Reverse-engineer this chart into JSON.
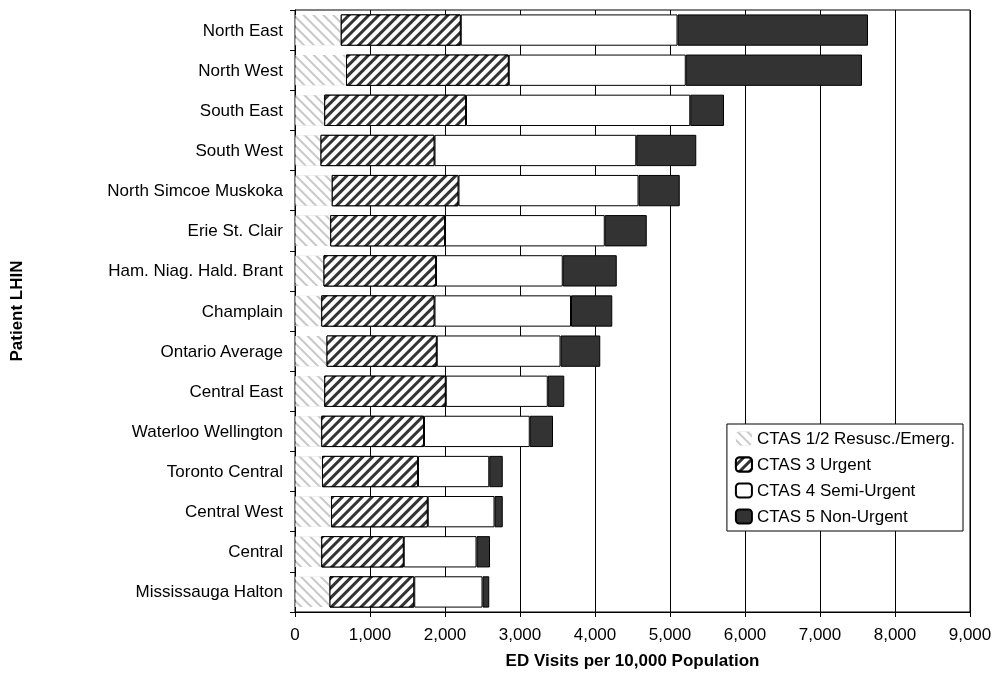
{
  "chart_data": {
    "type": "bar",
    "orientation": "horizontal",
    "stacked": true,
    "xlabel": "ED Visits per 10,000 Population",
    "ylabel": "Patient LHIN",
    "categories": [
      "North East",
      "North West",
      "South East",
      "South West",
      "North Simcoe Muskoka",
      "Erie St. Clair",
      "Ham. Niag. Hald. Brant",
      "Champlain",
      "Ontario Average",
      "Central East",
      "Waterloo Wellington",
      "Toronto Central",
      "Central West",
      "Central",
      "Mississauga Halton"
    ],
    "series": [
      {
        "name": "CTAS 1/2 Resusc./Emerg.",
        "color": "#c8c8c8",
        "values": [
          610,
          680,
          390,
          340,
          490,
          470,
          380,
          350,
          420,
          390,
          350,
          360,
          480,
          350,
          460
        ]
      },
      {
        "name": "CTAS 3 Urgent",
        "color": "#333333",
        "values": [
          1600,
          2170,
          1890,
          1520,
          1690,
          1530,
          1500,
          1510,
          1470,
          1620,
          1370,
          1280,
          1290,
          1100,
          1130
        ]
      },
      {
        "name": "CTAS 4 Semi-Urgent",
        "color": "#ffffff",
        "values": [
          2890,
          2360,
          2990,
          2690,
          2400,
          2130,
          1690,
          1820,
          1650,
          1360,
          1410,
          950,
          890,
          970,
          910
        ]
      },
      {
        "name": "CTAS 5 Non-Urgent",
        "color": "#333333",
        "values": [
          2540,
          2350,
          450,
          800,
          550,
          560,
          720,
          550,
          530,
          220,
          310,
          180,
          110,
          180,
          90
        ]
      }
    ],
    "xlim": [
      0,
      9000
    ],
    "xticks": [
      {
        "value": 0,
        "label": "0"
      },
      {
        "value": 1000,
        "label": "1,000"
      },
      {
        "value": 2000,
        "label": "2,000"
      },
      {
        "value": 3000,
        "label": "3,000"
      },
      {
        "value": 4000,
        "label": "4,000"
      },
      {
        "value": 5000,
        "label": "5,000"
      },
      {
        "value": 6000,
        "label": "6,000"
      },
      {
        "value": 7000,
        "label": "7,000"
      },
      {
        "value": 8000,
        "label": "8,000"
      },
      {
        "value": 9000,
        "label": "9,000"
      }
    ],
    "grid": "x",
    "legend": "bottom right"
  }
}
